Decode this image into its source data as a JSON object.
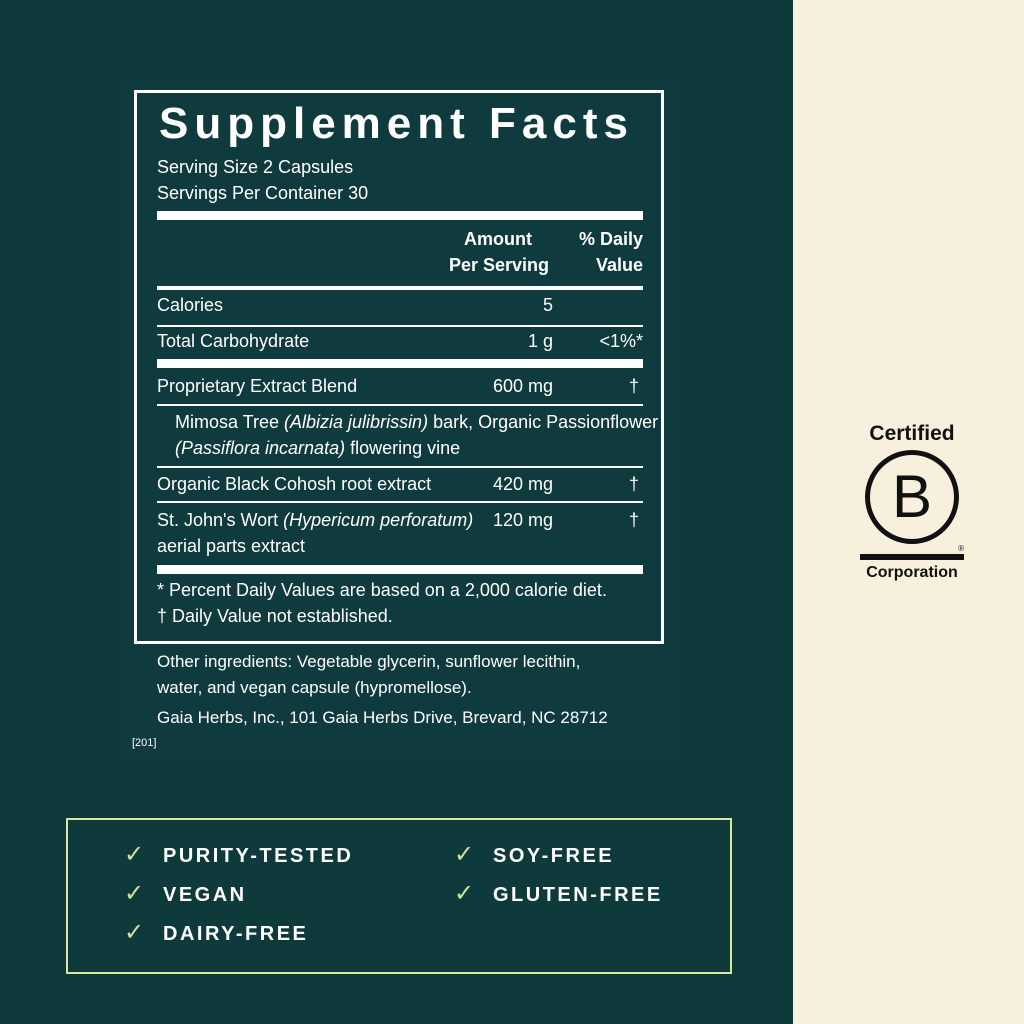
{
  "label": {
    "title": "Supplement Facts",
    "serving_size": "Serving Size 2 Capsules",
    "servings_per_container": "Servings Per Container 30",
    "header_amount_1": "Amount",
    "header_amount_2": "Per Serving",
    "header_dv_1": "% Daily",
    "header_dv_2": "Value",
    "rows": [
      {
        "name": "Calories",
        "amount": "5",
        "dv": ""
      },
      {
        "name": "Total Carbohydrate",
        "amount": "1 g",
        "dv": "<1%*"
      },
      {
        "name": "Proprietary Extract Blend",
        "amount": "600 mg",
        "dv": "†"
      },
      {
        "name": "Organic Black Cohosh root extract",
        "amount": "420 mg",
        "dv": "†"
      },
      {
        "name_a": "St. John's Wort ",
        "name_latin": "(Hypericum perforatum)",
        "name_b": "aerial parts extract",
        "amount": "120 mg",
        "dv": "†"
      }
    ],
    "blend_detail": {
      "a": "Mimosa Tree ",
      "latin1": "(Albizia julibrissin)",
      "b": " bark, Organic Passionflower",
      "latin2": "(Passiflora incarnata)",
      "c": " flowering vine"
    },
    "footnote_1": "*  Percent Daily Values are based on a 2,000 calorie diet.",
    "footnote_2": "† Daily Value not established."
  },
  "other_ingredients_1": "Other ingredients: Vegetable glycerin, sunflower lecithin,",
  "other_ingredients_2": "water, and vegan capsule (hypromellose).",
  "address": "Gaia Herbs, Inc., 101 Gaia Herbs Drive, Brevard, NC 28712",
  "code": "[201]",
  "features": [
    "PURITY-TESTED",
    "VEGAN",
    "DAIRY-FREE",
    "SOY-FREE",
    "GLUTEN-FREE"
  ],
  "bcorp": {
    "top": "Certified",
    "letter": "B",
    "bottom": "Corporation",
    "reg": "®"
  },
  "colors": {
    "background": "#0e3a3c",
    "cream": "#f7f0dd",
    "check": "#cfe39a"
  }
}
